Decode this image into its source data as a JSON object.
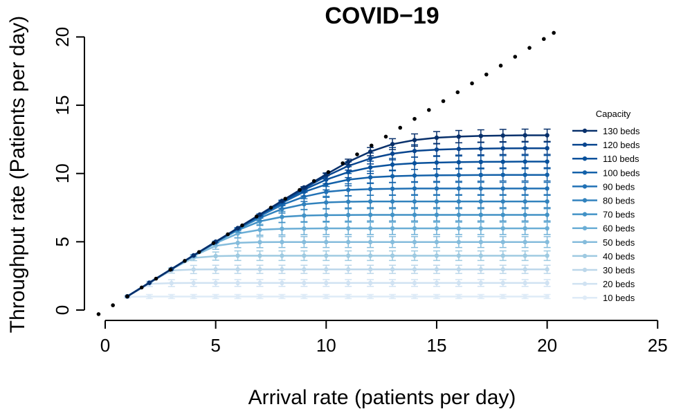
{
  "chart_data": {
    "type": "line",
    "title": "COVID−19",
    "xlabel": "Arrival rate (patients per day)",
    "ylabel": "Throughput rate (Patients per day)",
    "xlim": [
      -0.5,
      25.5
    ],
    "ylim": [
      -0.3,
      20.5
    ],
    "xticks": [
      "0",
      "5",
      "10",
      "15",
      "20",
      "25"
    ],
    "yticks": [
      "0",
      "5",
      "10",
      "15",
      "20"
    ],
    "grid": false,
    "legend": {
      "title": "Capacity",
      "placement": "right"
    },
    "x": [
      1,
      2,
      3,
      4,
      5,
      6,
      7,
      8,
      9,
      10,
      11,
      12,
      13,
      14,
      15,
      16,
      17,
      18,
      19,
      20
    ],
    "reference_line": {
      "style": "dotted",
      "x": [
        -0.3,
        0.35,
        1,
        1.65,
        2.3,
        2.95,
        3.6,
        4.25,
        4.9,
        5.55,
        6.2,
        6.85,
        7.5,
        8.15,
        8.8,
        9.45,
        10.1,
        10.75,
        11.4,
        12.05,
        12.7,
        13.35,
        14.0,
        14.65,
        15.3,
        15.95,
        16.6,
        17.25,
        17.9,
        18.55,
        19.2,
        19.85,
        20.3
      ],
      "y": [
        -0.3,
        0.35,
        1,
        1.65,
        2.3,
        2.95,
        3.6,
        4.25,
        4.9,
        5.55,
        6.2,
        6.85,
        7.5,
        8.15,
        8.8,
        9.45,
        10.1,
        10.75,
        11.4,
        12.05,
        12.7,
        13.35,
        14.0,
        14.65,
        15.3,
        15.95,
        16.6,
        17.25,
        17.9,
        18.55,
        19.2,
        19.85,
        20.3
      ]
    },
    "series": [
      {
        "name": "130 beds",
        "color": "#08306b",
        "values": [
          1,
          2,
          3,
          4,
          5,
          6,
          7,
          8,
          8.98,
          9.94,
          10.85,
          11.6,
          12.15,
          12.45,
          12.62,
          12.7,
          12.75,
          12.78,
          12.8,
          12.8
        ],
        "err": [
          0,
          0,
          0,
          0,
          0,
          0,
          0,
          0,
          0.05,
          0.1,
          0.2,
          0.3,
          0.4,
          0.45,
          0.45,
          0.45,
          0.45,
          0.45,
          0.45,
          0.45
        ]
      },
      {
        "name": "120 beds",
        "color": "#08458f",
        "values": [
          1,
          2,
          3,
          4,
          5,
          6,
          6.99,
          7.97,
          8.92,
          9.8,
          10.55,
          11.1,
          11.45,
          11.65,
          11.75,
          11.8,
          11.82,
          11.84,
          11.85,
          11.85
        ],
        "err": [
          0,
          0,
          0,
          0,
          0,
          0,
          0,
          0.05,
          0.1,
          0.2,
          0.3,
          0.4,
          0.45,
          0.45,
          0.45,
          0.45,
          0.45,
          0.45,
          0.45,
          0.45
        ]
      },
      {
        "name": "110 beds",
        "color": "#08519c",
        "values": [
          1,
          2,
          3,
          4,
          5,
          5.99,
          6.97,
          7.93,
          8.82,
          9.55,
          10.1,
          10.45,
          10.65,
          10.75,
          10.8,
          10.83,
          10.85,
          10.86,
          10.87,
          10.87
        ],
        "err": [
          0,
          0,
          0,
          0,
          0,
          0,
          0.05,
          0.1,
          0.2,
          0.3,
          0.4,
          0.45,
          0.45,
          0.45,
          0.45,
          0.45,
          0.45,
          0.45,
          0.45,
          0.45
        ]
      },
      {
        "name": "100 beds",
        "color": "#1361a9",
        "values": [
          1,
          2,
          3,
          4,
          5,
          5.98,
          6.94,
          7.85,
          8.65,
          9.2,
          9.55,
          9.72,
          9.8,
          9.85,
          9.87,
          9.88,
          9.89,
          9.9,
          9.9,
          9.9
        ],
        "err": [
          0,
          0,
          0,
          0,
          0,
          0.05,
          0.1,
          0.2,
          0.3,
          0.4,
          0.45,
          0.45,
          0.45,
          0.45,
          0.45,
          0.45,
          0.45,
          0.45,
          0.45,
          0.45
        ]
      },
      {
        "name": "90 beds",
        "color": "#2171b5",
        "values": [
          1,
          2,
          3,
          4,
          4.99,
          5.96,
          6.88,
          7.7,
          8.3,
          8.65,
          8.8,
          8.86,
          8.88,
          8.9,
          8.9,
          8.9,
          8.9,
          8.9,
          8.9,
          8.9
        ],
        "err": [
          0,
          0,
          0,
          0,
          0,
          0.05,
          0.15,
          0.25,
          0.35,
          0.4,
          0.45,
          0.45,
          0.45,
          0.45,
          0.45,
          0.45,
          0.45,
          0.45,
          0.45,
          0.45
        ]
      },
      {
        "name": "80 beds",
        "color": "#3182bd",
        "values": [
          1,
          2,
          3,
          4,
          4.98,
          5.92,
          6.75,
          7.4,
          7.75,
          7.88,
          7.93,
          7.95,
          7.95,
          7.95,
          7.95,
          7.95,
          7.95,
          7.95,
          7.95,
          7.95
        ],
        "err": [
          0,
          0,
          0,
          0,
          0.05,
          0.1,
          0.2,
          0.3,
          0.4,
          0.45,
          0.45,
          0.45,
          0.45,
          0.45,
          0.45,
          0.45,
          0.45,
          0.45,
          0.45,
          0.45
        ]
      },
      {
        "name": "70 beds",
        "color": "#4292c6",
        "values": [
          1,
          2,
          3,
          4,
          4.96,
          5.85,
          6.5,
          6.82,
          6.92,
          6.95,
          6.96,
          6.97,
          6.97,
          6.97,
          6.97,
          6.97,
          6.97,
          6.97,
          6.97,
          6.97
        ],
        "err": [
          0,
          0,
          0,
          0,
          0.05,
          0.15,
          0.3,
          0.4,
          0.45,
          0.45,
          0.45,
          0.45,
          0.45,
          0.45,
          0.45,
          0.45,
          0.45,
          0.45,
          0.45,
          0.45
        ]
      },
      {
        "name": "60 beds",
        "color": "#6baed6",
        "values": [
          1,
          2,
          3,
          3.98,
          4.9,
          5.6,
          5.88,
          5.95,
          5.97,
          5.98,
          5.98,
          5.98,
          5.98,
          5.98,
          5.98,
          5.98,
          5.98,
          5.98,
          5.98,
          5.98
        ],
        "err": [
          0,
          0,
          0,
          0.05,
          0.15,
          0.3,
          0.4,
          0.45,
          0.45,
          0.45,
          0.45,
          0.45,
          0.45,
          0.45,
          0.45,
          0.45,
          0.45,
          0.45,
          0.45,
          0.45
        ]
      },
      {
        "name": "50 beds",
        "color": "#85bcdc",
        "values": [
          1,
          2,
          3,
          3.96,
          4.7,
          4.92,
          4.97,
          4.98,
          4.98,
          4.98,
          4.98,
          4.98,
          4.98,
          4.98,
          4.98,
          4.98,
          4.98,
          4.98,
          4.98,
          4.98
        ],
        "err": [
          0,
          0,
          0,
          0.1,
          0.25,
          0.35,
          0.4,
          0.4,
          0.4,
          0.4,
          0.4,
          0.4,
          0.4,
          0.4,
          0.4,
          0.4,
          0.4,
          0.4,
          0.4,
          0.4
        ]
      },
      {
        "name": "40 beds",
        "color": "#9ecae1",
        "values": [
          1,
          2,
          2.98,
          3.82,
          3.95,
          3.98,
          3.98,
          3.98,
          3.98,
          3.98,
          3.98,
          3.98,
          3.98,
          3.98,
          3.98,
          3.98,
          3.98,
          3.98,
          3.98,
          3.98
        ],
        "err": [
          0,
          0,
          0.05,
          0.2,
          0.3,
          0.35,
          0.35,
          0.35,
          0.35,
          0.35,
          0.35,
          0.35,
          0.35,
          0.35,
          0.35,
          0.35,
          0.35,
          0.35,
          0.35,
          0.35
        ]
      },
      {
        "name": "30 beds",
        "color": "#bcd7ea",
        "values": [
          1,
          1.98,
          2.9,
          2.97,
          2.98,
          2.98,
          2.98,
          2.98,
          2.98,
          2.98,
          2.98,
          2.98,
          2.98,
          2.98,
          2.98,
          2.98,
          2.98,
          2.98,
          2.98,
          2.98
        ],
        "err": [
          0,
          0.05,
          0.2,
          0.3,
          0.3,
          0.3,
          0.3,
          0.3,
          0.3,
          0.3,
          0.3,
          0.3,
          0.3,
          0.3,
          0.3,
          0.3,
          0.3,
          0.3,
          0.3,
          0.3
        ]
      },
      {
        "name": "20 beds",
        "color": "#d0e2f2",
        "values": [
          1,
          1.92,
          1.97,
          1.98,
          1.98,
          1.98,
          1.98,
          1.98,
          1.98,
          1.98,
          1.98,
          1.98,
          1.98,
          1.98,
          1.98,
          1.98,
          1.98,
          1.98,
          1.98,
          1.98
        ],
        "err": [
          0.05,
          0.2,
          0.25,
          0.25,
          0.25,
          0.25,
          0.25,
          0.25,
          0.25,
          0.25,
          0.25,
          0.25,
          0.25,
          0.25,
          0.25,
          0.25,
          0.25,
          0.25,
          0.25,
          0.25
        ]
      },
      {
        "name": "10 beds",
        "color": "#deebf7",
        "values": [
          0.97,
          0.99,
          0.99,
          0.99,
          0.99,
          0.99,
          0.99,
          0.99,
          0.99,
          0.99,
          0.99,
          0.99,
          0.99,
          0.99,
          0.99,
          0.99,
          0.99,
          0.99,
          0.99,
          0.99
        ],
        "err": [
          0.1,
          0.15,
          0.15,
          0.15,
          0.15,
          0.15,
          0.15,
          0.15,
          0.15,
          0.15,
          0.15,
          0.15,
          0.15,
          0.15,
          0.15,
          0.15,
          0.15,
          0.15,
          0.15,
          0.15
        ]
      }
    ]
  }
}
